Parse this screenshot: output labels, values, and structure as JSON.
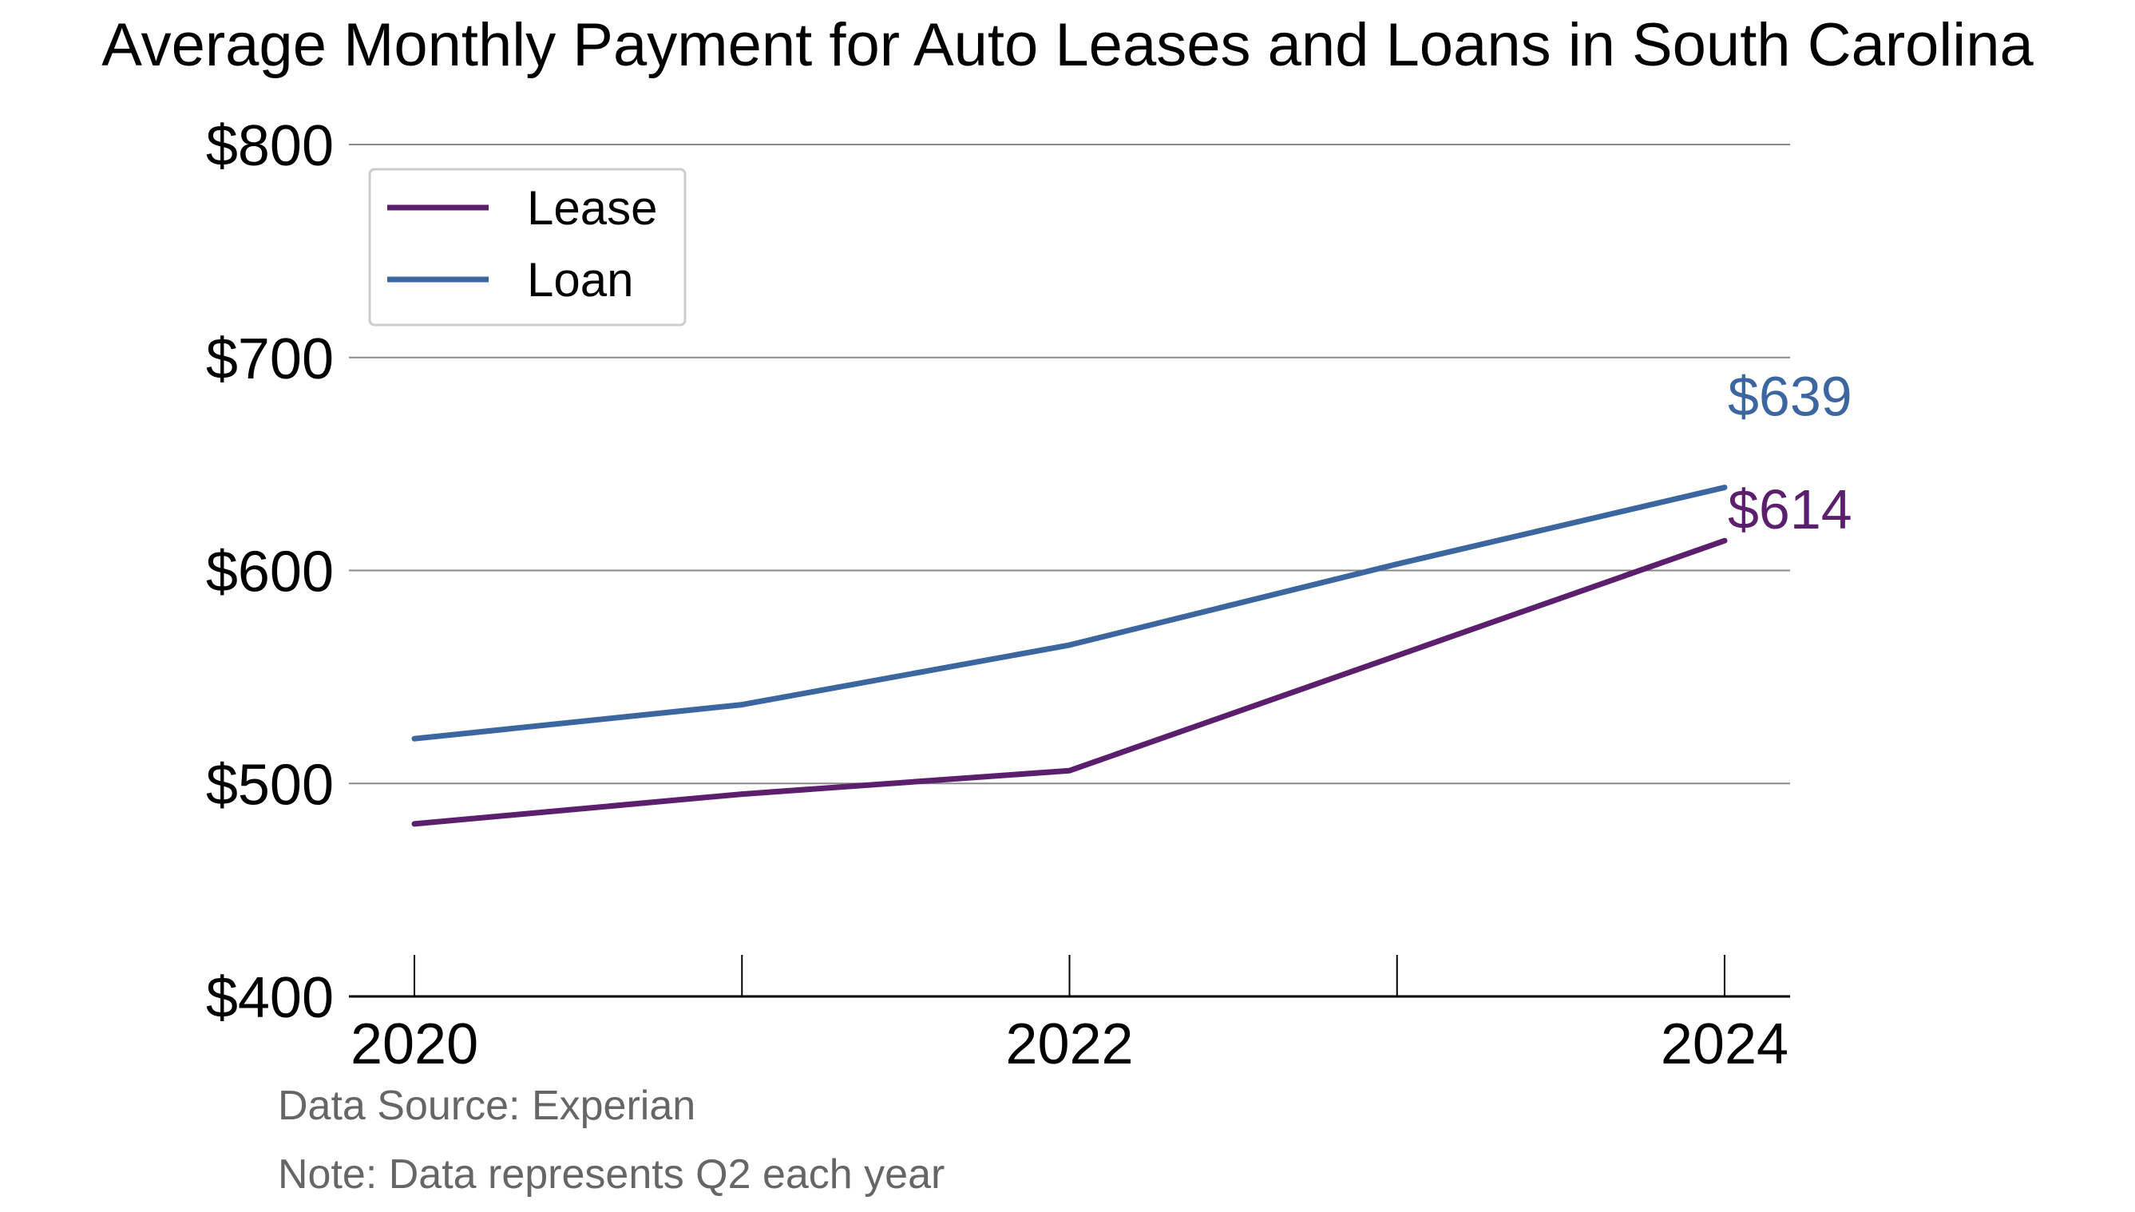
{
  "chart_data": {
    "type": "line",
    "title": "Average Monthly Payment for Auto Leases and Loans in South Carolina",
    "x": [
      2020,
      2021,
      2022,
      2023,
      2024
    ],
    "x_tick_labels": [
      "2020",
      "2022",
      "2024"
    ],
    "x_tick_values": [
      2020,
      2022,
      2024
    ],
    "xlim": [
      2019.8,
      2024.2
    ],
    "ylim": [
      400,
      800
    ],
    "y_ticks": [
      400,
      500,
      600,
      700,
      800
    ],
    "y_tick_labels": [
      "$400",
      "$500",
      "$600",
      "$700",
      "$800"
    ],
    "grid": "horizontal",
    "legend": "top-left",
    "series": [
      {
        "name": "Lease",
        "color": "#5c1f6e",
        "values": [
          481,
          495,
          506,
          560,
          614
        ],
        "end_label": "$614"
      },
      {
        "name": "Loan",
        "color": "#3b66a0",
        "values": [
          521,
          537,
          565,
          603,
          639
        ],
        "end_label": "$639"
      }
    ],
    "footnotes": [
      "Data Source: Experian",
      "Note: Data represents Q2 each year"
    ]
  }
}
